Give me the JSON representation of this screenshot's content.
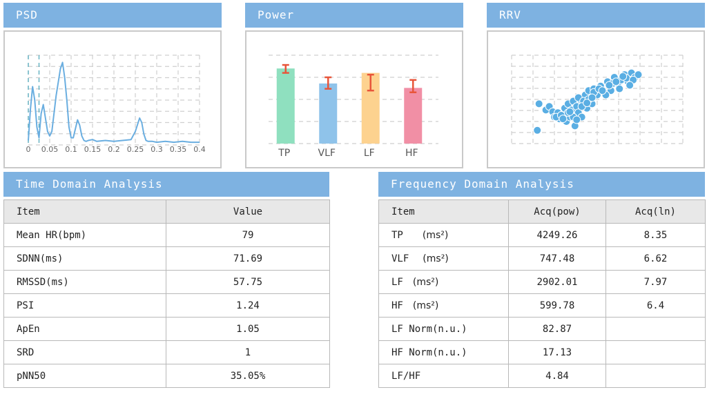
{
  "psd": {
    "title": "PSD"
  },
  "power": {
    "title": "Power"
  },
  "rrv": {
    "title": "RRV"
  },
  "time_domain": {
    "title": "Time Domain Analysis",
    "headers": [
      "Item",
      "Value"
    ],
    "rows": [
      {
        "item": "Mean HR(bpm)",
        "value": "79"
      },
      {
        "item": "SDNN(ms)",
        "value": "71.69"
      },
      {
        "item": "RMSSD(ms)",
        "value": "57.75"
      },
      {
        "item": "PSI",
        "value": "1.24"
      },
      {
        "item": "ApEn",
        "value": "1.05"
      },
      {
        "item": "SRD",
        "value": "1"
      },
      {
        "item": "pNN50",
        "value": "35.05%"
      }
    ]
  },
  "frequency_domain": {
    "title": "Frequency Domain Analysis",
    "headers": [
      "Item",
      "Acq(pow)",
      "Acq(ln)"
    ],
    "rows": [
      {
        "item": "TP",
        "unit": "(ms²)",
        "pow": "4249.26",
        "ln": "8.35"
      },
      {
        "item": "VLF",
        "unit": "(ms²)",
        "pow": "747.48",
        "ln": "6.62"
      },
      {
        "item": "LF",
        "unit": "(ms²)",
        "pow": "2902.01",
        "ln": "7.97"
      },
      {
        "item": "HF",
        "unit": "(ms²)",
        "pow": "599.78",
        "ln": "6.4"
      },
      {
        "item": "LF Norm(n.u.)",
        "unit": "",
        "pow": "82.87",
        "ln": ""
      },
      {
        "item": "HF Norm(n.u.)",
        "unit": "",
        "pow": "17.13",
        "ln": ""
      },
      {
        "item": "LF/HF",
        "unit": "",
        "pow": "4.84",
        "ln": ""
      }
    ]
  },
  "chart_data": [
    {
      "type": "line",
      "title": "PSD",
      "x_tick_labels": [
        "0",
        "0.05",
        "0.1",
        "0.15",
        "0.2",
        "0.25",
        "0.3",
        "0.35",
        "0.4"
      ],
      "xlim": [
        0,
        0.4
      ],
      "ylim": [
        0,
        1
      ],
      "grid": true,
      "line_color": "#6aaee0",
      "x": [
        0.0,
        0.005,
        0.01,
        0.015,
        0.02,
        0.025,
        0.03,
        0.035,
        0.04,
        0.045,
        0.05,
        0.055,
        0.06,
        0.065,
        0.07,
        0.075,
        0.08,
        0.085,
        0.09,
        0.095,
        0.1,
        0.105,
        0.11,
        0.115,
        0.12,
        0.125,
        0.13,
        0.135,
        0.14,
        0.15,
        0.16,
        0.18,
        0.2,
        0.22,
        0.24,
        0.25,
        0.26,
        0.265,
        0.27,
        0.275,
        0.28,
        0.29,
        0.3,
        0.32,
        0.34,
        0.36,
        0.38,
        0.4
      ],
      "y": [
        0.05,
        0.4,
        0.65,
        0.5,
        0.2,
        0.08,
        0.35,
        0.45,
        0.3,
        0.15,
        0.1,
        0.15,
        0.35,
        0.55,
        0.7,
        0.85,
        0.92,
        0.75,
        0.5,
        0.2,
        0.08,
        0.08,
        0.18,
        0.28,
        0.22,
        0.1,
        0.05,
        0.04,
        0.05,
        0.06,
        0.04,
        0.05,
        0.04,
        0.05,
        0.06,
        0.15,
        0.3,
        0.25,
        0.12,
        0.05,
        0.04,
        0.04,
        0.03,
        0.04,
        0.03,
        0.04,
        0.03,
        0.03
      ]
    },
    {
      "type": "bar",
      "title": "Power",
      "categories": [
        "TP",
        "VLF",
        "LF",
        "HF"
      ],
      "values": [
        0.85,
        0.68,
        0.8,
        0.63
      ],
      "error_high": [
        0.89,
        0.75,
        0.78,
        0.72
      ],
      "error_low": [
        0.8,
        0.62,
        0.6,
        0.58
      ],
      "colors": [
        "#8fe0bf",
        "#8fc3ea",
        "#fdd28f",
        "#f18fa5"
      ],
      "error_color": "#e8553a",
      "ylim": [
        0,
        1
      ],
      "grid": true
    },
    {
      "type": "scatter",
      "title": "RRV",
      "xlim": [
        0,
        1
      ],
      "ylim": [
        0,
        1
      ],
      "grid": true,
      "point_color": "#5aaee3",
      "x": [
        0.15,
        0.16,
        0.2,
        0.22,
        0.24,
        0.25,
        0.27,
        0.28,
        0.3,
        0.31,
        0.32,
        0.33,
        0.34,
        0.35,
        0.36,
        0.37,
        0.38,
        0.39,
        0.4,
        0.41,
        0.42,
        0.43,
        0.44,
        0.45,
        0.46,
        0.47,
        0.48,
        0.5,
        0.52,
        0.54,
        0.56,
        0.58,
        0.6,
        0.62,
        0.64,
        0.66,
        0.68,
        0.7,
        0.72,
        0.74,
        0.26,
        0.29,
        0.33,
        0.36,
        0.39,
        0.42,
        0.45,
        0.48,
        0.51,
        0.55,
        0.59,
        0.63,
        0.67,
        0.71,
        0.3,
        0.34,
        0.38,
        0.41,
        0.44,
        0.47,
        0.53,
        0.57,
        0.61,
        0.65,
        0.69
      ],
      "y": [
        0.15,
        0.45,
        0.38,
        0.42,
        0.36,
        0.3,
        0.35,
        0.28,
        0.33,
        0.4,
        0.25,
        0.45,
        0.3,
        0.38,
        0.48,
        0.2,
        0.42,
        0.35,
        0.5,
        0.3,
        0.45,
        0.55,
        0.4,
        0.6,
        0.5,
        0.45,
        0.62,
        0.55,
        0.65,
        0.58,
        0.7,
        0.6,
        0.75,
        0.68,
        0.72,
        0.78,
        0.7,
        0.8,
        0.75,
        0.78,
        0.3,
        0.32,
        0.35,
        0.3,
        0.52,
        0.48,
        0.5,
        0.58,
        0.62,
        0.55,
        0.68,
        0.62,
        0.74,
        0.72,
        0.28,
        0.36,
        0.27,
        0.42,
        0.46,
        0.52,
        0.6,
        0.66,
        0.7,
        0.76,
        0.66
      ]
    }
  ]
}
